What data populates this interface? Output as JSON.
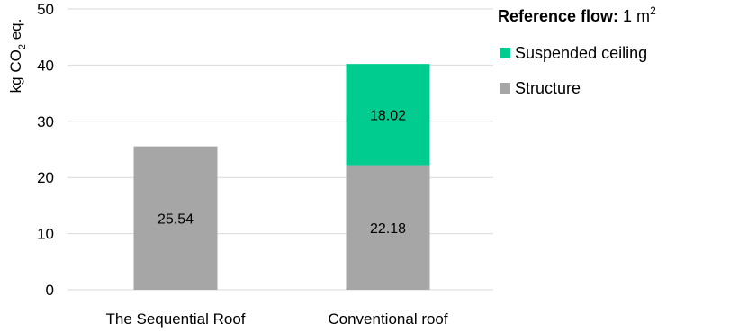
{
  "chart_data": {
    "type": "bar",
    "stacked": true,
    "categories": [
      "The Sequential Roof",
      "Conventional roof"
    ],
    "series": [
      {
        "name": "Structure",
        "values": [
          25.54,
          22.18
        ],
        "color": "#a6a6a6"
      },
      {
        "name": "Suspended ceiling",
        "values": [
          0,
          18.02
        ],
        "color": "#00cc8f"
      }
    ],
    "ylabel": {
      "main": "kg CO",
      "sub": "2",
      "suffix": " eq."
    },
    "ylim": [
      0,
      50
    ],
    "yticks": [
      0,
      10,
      20,
      30,
      40,
      50
    ],
    "grid": true,
    "legend_placement": "top-right",
    "legend_order": [
      "Suspended ceiling",
      "Structure"
    ],
    "reference": {
      "label": "Reference flow:",
      "value": " 1 m",
      "superscript": "2"
    }
  }
}
